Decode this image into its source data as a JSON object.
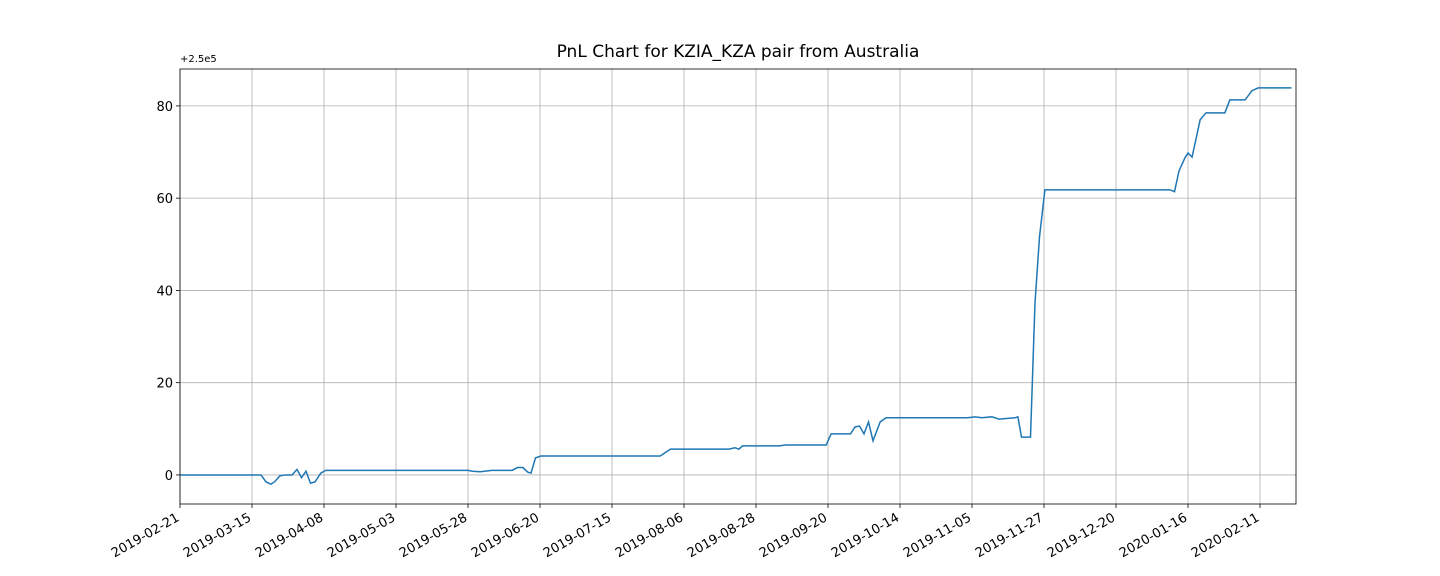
{
  "chart_data": {
    "type": "line",
    "title": "PnL Chart for KZIA_KZA pair from Australia",
    "offset_label": "+2.5e5",
    "color": "#1f77b4",
    "grid": true,
    "x": [
      0,
      18,
      19.1,
      20.2,
      21,
      22.2,
      23.3,
      24.9,
      26,
      27,
      28,
      29,
      30,
      31.3,
      32.4,
      64,
      65,
      66.7,
      69.3,
      73.8,
      75,
      76.2,
      77.3,
      78,
      79,
      80.2,
      106.7,
      109,
      122,
      123.3,
      124.2,
      125,
      133.3,
      134.4,
      143.6,
      144.7,
      149,
      150,
      151,
      152,
      153,
      154,
      155.6,
      156.9,
      175,
      176.7,
      178.2,
      180.4,
      182,
      185.6,
      186.2,
      187,
      189,
      190,
      191,
      192.2,
      220,
      221,
      222,
      223.3,
      224,
      224.9,
      226.7,
      228,
      232.2,
      233.3,
      236.7,
      238.2,
      239.6,
      247
    ],
    "values": [
      0,
      0,
      -1.5,
      -2,
      -1.5,
      -0.2,
      0,
      0,
      1.2,
      -0.6,
      0.8,
      -1.8,
      -1.5,
      0.4,
      1,
      1,
      0.8,
      0.7,
      1,
      1,
      1.6,
      1.6,
      0.6,
      0.4,
      3.7,
      4.1,
      4.1,
      5.6,
      5.6,
      5.9,
      5.6,
      6.3,
      6.3,
      6.5,
      6.5,
      8.9,
      8.9,
      10.4,
      10.6,
      8.9,
      11.5,
      7.4,
      11.5,
      12.4,
      12.4,
      12.6,
      12.4,
      12.6,
      12.1,
      12.4,
      12.6,
      8.2,
      8.2,
      37.3,
      51.6,
      61.8,
      61.8,
      61.4,
      65.9,
      68.7,
      69.8,
      68.9,
      77,
      78.5,
      78.5,
      81.3,
      81.3,
      83.3,
      83.9,
      83.9
    ],
    "xlim": [
      0,
      248
    ],
    "ylim": [
      -6.3,
      88
    ],
    "yticks": [
      0,
      20,
      40,
      60,
      80
    ],
    "xticks": [
      {
        "value": 0,
        "label": "2019-02-21"
      },
      {
        "value": 16,
        "label": "2019-03-15"
      },
      {
        "value": 32,
        "label": "2019-04-08"
      },
      {
        "value": 48,
        "label": "2019-05-03"
      },
      {
        "value": 64,
        "label": "2019-05-28"
      },
      {
        "value": 80,
        "label": "2019-06-20"
      },
      {
        "value": 96,
        "label": "2019-07-15"
      },
      {
        "value": 112,
        "label": "2019-08-06"
      },
      {
        "value": 128,
        "label": "2019-08-28"
      },
      {
        "value": 144,
        "label": "2019-09-20"
      },
      {
        "value": 160,
        "label": "2019-10-14"
      },
      {
        "value": 176,
        "label": "2019-11-05"
      },
      {
        "value": 192,
        "label": "2019-11-27"
      },
      {
        "value": 208,
        "label": "2019-12-20"
      },
      {
        "value": 224,
        "label": "2020-01-16"
      },
      {
        "value": 240,
        "label": "2020-02-11"
      }
    ]
  }
}
